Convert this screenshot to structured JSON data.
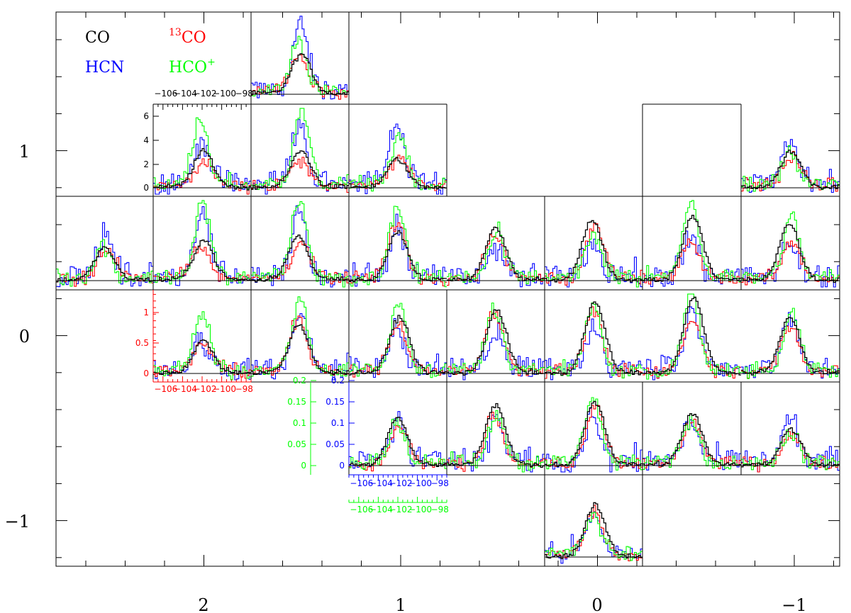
{
  "chart_data": {
    "type": "line",
    "legend": {
      "placement": "top-left",
      "entries": [
        {
          "label": "CO",
          "color": "#000000"
        },
        {
          "sup": "13",
          "label": "CO",
          "color": "#ff0000"
        },
        {
          "label": "HCN",
          "color": "#0000ff"
        },
        {
          "label": "HCO",
          "sup": "+",
          "color": "#00ff00"
        }
      ]
    },
    "map_axes": {
      "x_ticks": [
        "2",
        "1",
        "0",
        "−1"
      ],
      "y_ticks": [
        "1",
        "0",
        "−1"
      ]
    },
    "inset_axes": {
      "velocity_ticks": [
        "−106",
        "−104",
        "−102",
        "−100",
        "−98"
      ],
      "velocity_range": [
        -107,
        -97
      ],
      "black_intensity_ticks": [
        "0",
        "2",
        "4",
        "6"
      ],
      "red_intensity_ticks": [
        "0",
        "0.5",
        "1"
      ],
      "blue_intensity_ticks": [
        "0",
        "0.05",
        "0.1",
        "0.15",
        "0.2"
      ],
      "green_intensity_ticks": [
        "0",
        "0.05",
        "0.1",
        "0.15",
        "0.2"
      ]
    },
    "panels": [
      {
        "row": 0,
        "col": 2,
        "CO": 0.5,
        "13CO": 0.45,
        "HCN": 0.85,
        "HCO+": 0.65
      },
      {
        "row": 1,
        "col": 1,
        "CO": 0.45,
        "13CO": 0.3,
        "HCN": 0.55,
        "HCO+": 0.85
      },
      {
        "row": 1,
        "col": 2,
        "CO": 0.45,
        "13CO": 0.3,
        "HCN": 0.75,
        "HCO+": 0.95
      },
      {
        "row": 1,
        "col": 3,
        "CO": 0.35,
        "13CO": 0.35,
        "HCN": 0.7,
        "HCO+": 0.6
      },
      {
        "row": 1,
        "col": 7,
        "CO": 0.45,
        "13CO": 0.35,
        "HCN": 0.6,
        "HCO+": 0.4
      },
      {
        "row": 2,
        "col": 0,
        "CO": 0.4,
        "13CO": 0.35,
        "HCN": 0.5,
        "HCO+": 0.4
      },
      {
        "row": 2,
        "col": 1,
        "CO": 0.5,
        "13CO": 0.4,
        "HCN": 0.8,
        "HCO+": 0.95
      },
      {
        "row": 2,
        "col": 2,
        "CO": 0.55,
        "13CO": 0.45,
        "HCN": 0.85,
        "HCO+": 0.95
      },
      {
        "row": 2,
        "col": 3,
        "CO": 0.6,
        "13CO": 0.7,
        "HCN": 0.65,
        "HCO+": 0.9
      },
      {
        "row": 2,
        "col": 4,
        "CO": 0.65,
        "13CO": 0.55,
        "HCN": 0.35,
        "HCO+": 0.55
      },
      {
        "row": 2,
        "col": 5,
        "CO": 0.75,
        "13CO": 0.65,
        "HCN": 0.45,
        "HCO+": 0.55
      },
      {
        "row": 2,
        "col": 6,
        "CO": 0.8,
        "13CO": 0.45,
        "HCN": 0.5,
        "HCO+": 0.95
      },
      {
        "row": 2,
        "col": 7,
        "CO": 0.7,
        "13CO": 0.45,
        "HCN": 0.4,
        "HCO+": 0.75
      },
      {
        "row": 3,
        "col": 1,
        "CO": 0.4,
        "13CO": 0.35,
        "HCN": 0.35,
        "HCO+": 0.7
      },
      {
        "row": 3,
        "col": 2,
        "CO": 0.6,
        "13CO": 0.65,
        "HCN": 0.7,
        "HCO+": 0.9
      },
      {
        "row": 3,
        "col": 3,
        "CO": 0.7,
        "13CO": 0.6,
        "HCN": 0.55,
        "HCO+": 0.85
      },
      {
        "row": 3,
        "col": 4,
        "CO": 0.8,
        "13CO": 0.75,
        "HCN": 0.5,
        "HCO+": 0.8
      },
      {
        "row": 3,
        "col": 5,
        "CO": 0.9,
        "13CO": 0.75,
        "HCN": 0.55,
        "HCO+": 0.85
      },
      {
        "row": 3,
        "col": 6,
        "CO": 0.95,
        "13CO": 0.65,
        "HCN": 0.7,
        "HCO+": 0.95
      },
      {
        "row": 3,
        "col": 7,
        "CO": 0.7,
        "13CO": 0.55,
        "HCN": 0.65,
        "HCO+": 0.75
      },
      {
        "row": 4,
        "col": 3,
        "CO": 0.6,
        "13CO": 0.45,
        "HCN": 0.55,
        "HCO+": 0.5
      },
      {
        "row": 4,
        "col": 4,
        "CO": 0.75,
        "13CO": 0.6,
        "HCN": 0.55,
        "HCO+": 0.6
      },
      {
        "row": 4,
        "col": 5,
        "CO": 0.8,
        "13CO": 0.75,
        "HCN": 0.6,
        "HCO+": 0.85
      },
      {
        "row": 4,
        "col": 6,
        "CO": 0.65,
        "13CO": 0.5,
        "HCN": 0.5,
        "HCO+": 0.55
      },
      {
        "row": 4,
        "col": 7,
        "CO": 0.45,
        "13CO": 0.35,
        "HCN": 0.55,
        "HCO+": 0.4
      },
      {
        "row": 5,
        "col": 5,
        "CO": 0.65,
        "13CO": 0.55,
        "HCN": 0.45,
        "HCO+": 0.5
      }
    ]
  }
}
